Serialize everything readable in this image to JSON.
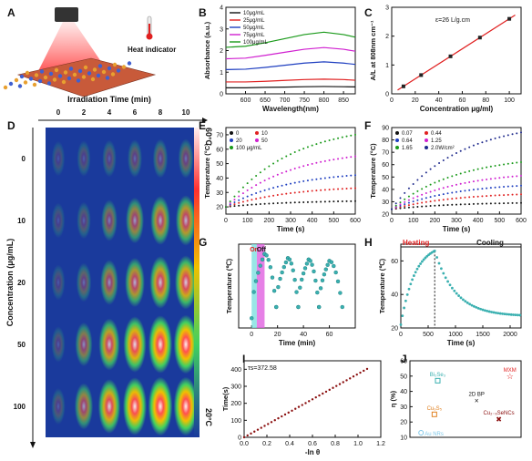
{
  "panel_letters": [
    "A",
    "B",
    "C",
    "D",
    "E",
    "F",
    "G",
    "H",
    "I",
    "J"
  ],
  "panel_a": {
    "heat_indicator": "Heat indicator"
  },
  "panel_d": {
    "top_axis_title": "Irradiation Time  (min)",
    "time_labels": [
      "0",
      "2",
      "4",
      "6",
      "8",
      "10"
    ],
    "row_axis_title": "Concentration (μg/mL)",
    "row_labels": [
      "0",
      "10",
      "20",
      "50",
      "100"
    ],
    "scale_max": "60°C",
    "scale_min": "20°C",
    "intensity": [
      [
        0.04,
        0.08,
        0.12,
        0.16,
        0.2,
        0.22
      ],
      [
        0.05,
        0.12,
        0.3,
        0.48,
        0.6,
        0.66
      ],
      [
        0.06,
        0.2,
        0.45,
        0.62,
        0.74,
        0.8
      ],
      [
        0.08,
        0.4,
        0.72,
        0.88,
        0.96,
        1.0
      ],
      [
        0.1,
        0.5,
        0.82,
        0.96,
        1.0,
        1.0
      ]
    ],
    "colors": {
      "cold": "#1a3a9c",
      "hot": "#fff0f0"
    }
  },
  "chart_data": [
    {
      "panel": "B",
      "type": "line",
      "xlabel": "Wavelength(nm)",
      "ylabel": "Absorbance (a.u.)",
      "xlim": [
        550,
        880
      ],
      "ylim": [
        0,
        4
      ],
      "xticks": [
        600,
        650,
        700,
        750,
        800,
        850
      ],
      "yticks": [
        0,
        1,
        2,
        3,
        4
      ],
      "x": [
        550,
        600,
        650,
        700,
        750,
        800,
        850,
        880
      ],
      "series": [
        {
          "name": "10μg/mL",
          "color": "#111111",
          "values": [
            0.28,
            0.28,
            0.3,
            0.31,
            0.33,
            0.34,
            0.33,
            0.32
          ]
        },
        {
          "name": "25μg/mL",
          "color": "#e02020",
          "values": [
            0.55,
            0.55,
            0.58,
            0.62,
            0.66,
            0.68,
            0.66,
            0.63
          ]
        },
        {
          "name": "50μg/mL",
          "color": "#1f3fc0",
          "values": [
            1.12,
            1.14,
            1.22,
            1.32,
            1.42,
            1.48,
            1.42,
            1.36
          ]
        },
        {
          "name": "75μg/mL",
          "color": "#d020d0",
          "values": [
            1.62,
            1.65,
            1.78,
            1.92,
            2.06,
            2.14,
            2.06,
            1.97
          ]
        },
        {
          "name": "100μg/mL",
          "color": "#1a9a1a",
          "values": [
            2.15,
            2.2,
            2.36,
            2.55,
            2.74,
            2.85,
            2.74,
            2.62
          ]
        }
      ]
    },
    {
      "panel": "C",
      "type": "scatter",
      "title": "ε=26 L/g.cm",
      "xlabel": "Concentration μg/ml)",
      "ylabel": "A/L at 808nm cm⁻¹",
      "xlim": [
        0,
        110
      ],
      "ylim": [
        0,
        3
      ],
      "xticks": [
        0,
        20,
        40,
        60,
        80,
        100
      ],
      "yticks": [
        0,
        1,
        2,
        3
      ],
      "x": [
        10,
        25,
        50,
        75,
        100
      ],
      "values": [
        0.26,
        0.65,
        1.3,
        1.95,
        2.6
      ],
      "fit": [
        [
          5,
          0.13
        ],
        [
          105,
          2.73
        ]
      ],
      "color": "#e02020"
    },
    {
      "panel": "E",
      "type": "line",
      "xlabel": "Time (s)",
      "ylabel": "Temperature (°C)",
      "xlim": [
        0,
        600
      ],
      "ylim": [
        15,
        75
      ],
      "xticks": [
        0,
        100,
        200,
        300,
        400,
        500,
        600
      ],
      "yticks": [
        20,
        30,
        40,
        50,
        60,
        70
      ],
      "series": [
        {
          "name": "0",
          "color": "#111111",
          "start": 20,
          "end": 24
        },
        {
          "name": "10",
          "color": "#e02020",
          "start": 20,
          "end": 33
        },
        {
          "name": "20",
          "color": "#1f3fc0",
          "start": 20,
          "end": 42
        },
        {
          "name": "50",
          "color": "#d020d0",
          "start": 20,
          "end": 55
        },
        {
          "name": "100 μg/mL",
          "color": "#1a9a1a",
          "start": 20,
          "end": 70
        }
      ]
    },
    {
      "panel": "F",
      "type": "line",
      "xlabel": "Time (s)",
      "ylabel": "Temperature (°C)",
      "xlim": [
        0,
        600
      ],
      "ylim": [
        20,
        90
      ],
      "xticks": [
        0,
        100,
        200,
        300,
        400,
        500,
        600
      ],
      "yticks": [
        20,
        30,
        40,
        50,
        60,
        70,
        80,
        90
      ],
      "series": [
        {
          "name": "0.07",
          "color": "#111111",
          "start": 24,
          "end": 29
        },
        {
          "name": "0.44",
          "color": "#e02020",
          "start": 24,
          "end": 36
        },
        {
          "name": "0.64",
          "color": "#1f3fc0",
          "start": 24,
          "end": 43
        },
        {
          "name": "1.25",
          "color": "#d020d0",
          "start": 24,
          "end": 51
        },
        {
          "name": "1.65",
          "color": "#1a9a1a",
          "start": 24,
          "end": 62
        },
        {
          "name": "2.0W/cm²",
          "color": "#1f2a8c",
          "start": 24,
          "end": 86
        }
      ]
    },
    {
      "panel": "G",
      "type": "scatter",
      "xlabel": "Time (min)",
      "ylabel": "Temperature (℃)",
      "xlim": [
        -10,
        80
      ],
      "ylim": [
        15,
        75
      ],
      "xticks": [
        0,
        20,
        40,
        60
      ],
      "on_label": "On",
      "off_label": "Off",
      "peaks": [
        [
          10,
          68
        ],
        [
          28,
          65
        ],
        [
          44,
          64
        ],
        [
          60,
          63
        ]
      ],
      "troughs": [
        [
          0,
          22
        ],
        [
          19,
          30
        ],
        [
          36,
          30
        ],
        [
          52,
          30
        ],
        [
          70,
          30
        ]
      ],
      "color": "#3ab0b0"
    },
    {
      "panel": "H",
      "type": "scatter",
      "xlabel": "Time (s)",
      "ylabel": "Temperature (℃)",
      "xlim": [
        0,
        2200
      ],
      "ylim": [
        20,
        70
      ],
      "xticks": [
        0,
        500,
        1000,
        1500,
        2000
      ],
      "yticks": [
        20,
        40,
        60
      ],
      "heating_label": "Heating",
      "cooling_label": "Cooling",
      "peak": [
        620,
        66
      ],
      "start": 22,
      "end_value": 27,
      "color": "#3ab0b0"
    },
    {
      "panel": "I",
      "type": "scatter",
      "annotation": "τs=372.58",
      "xlabel": "-ln θ",
      "ylabel": "Time(s)",
      "xlim": [
        0,
        1.2
      ],
      "ylim": [
        0,
        450
      ],
      "xticks": [
        0.0,
        0.2,
        0.4,
        0.6,
        0.8,
        1.0,
        1.2
      ],
      "yticks": [
        0,
        100,
        200,
        300,
        400
      ],
      "slope": 372.58,
      "xmax": 1.1,
      "color": "#8b1010"
    },
    {
      "panel": "J",
      "type": "scatter",
      "ylabel": "η (%)",
      "ylim": [
        10,
        60
      ],
      "yticks": [
        10,
        20,
        30,
        40,
        50,
        60
      ],
      "points": [
        {
          "label": "MXM",
          "x": 0.9,
          "y": 50,
          "color": "#e02020",
          "marker": "star"
        },
        {
          "label": "Bi₂Se₃",
          "x": 0.25,
          "y": 47,
          "color": "#3ab0b0",
          "marker": "square"
        },
        {
          "label": "2D BP",
          "x": 0.6,
          "y": 34,
          "color": "#111111",
          "marker": "cross"
        },
        {
          "label": "Cu₉S₅",
          "x": 0.22,
          "y": 25,
          "color": "#e08020",
          "marker": "square"
        },
        {
          "label": "Cu₂₋ₓSeNCs",
          "x": 0.8,
          "y": 22,
          "color": "#8b1010",
          "marker": "x"
        },
        {
          "label": "Au NRs",
          "x": 0.1,
          "y": 13,
          "color": "#80c8e8",
          "marker": "circle"
        }
      ]
    }
  ]
}
